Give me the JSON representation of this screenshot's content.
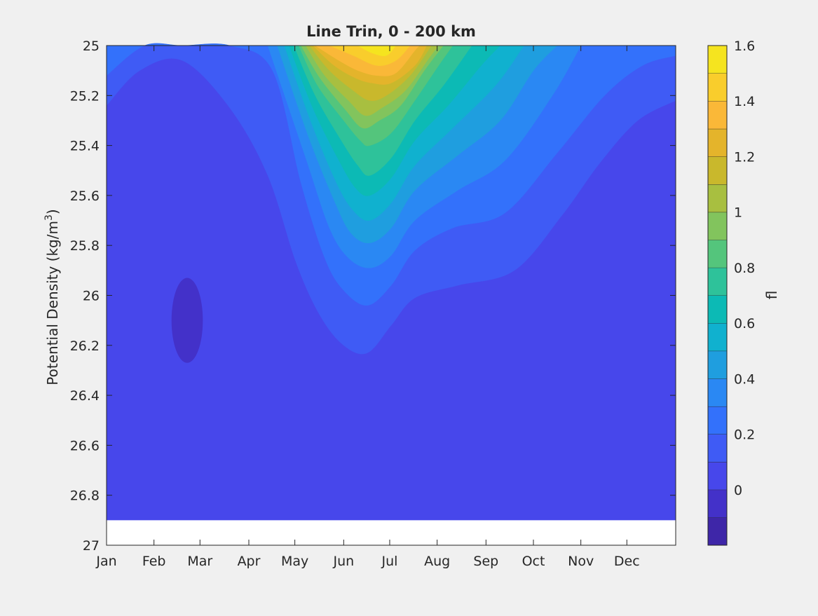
{
  "chart_data": {
    "type": "heatmap",
    "subtype": "filled-contour",
    "title": "Line Trin, 0 - 200 km",
    "ylabel_main": "Potential Density (kg/m",
    "ylabel_sup": "3",
    "ylabel_end": ")",
    "xlabel": "",
    "x_ticks": [
      "Jan",
      "Feb",
      "Mar",
      "Apr",
      "May",
      "Jun",
      "Jul",
      "Aug",
      "Sep",
      "Oct",
      "Nov",
      "Dec"
    ],
    "x_tick_positions": [
      0,
      1,
      1.97,
      3,
      3.97,
      5,
      5.97,
      6.97,
      8,
      9,
      10,
      10.97
    ],
    "xlim": [
      0,
      12
    ],
    "y_ticks": [
      "25",
      "25.2",
      "25.4",
      "25.6",
      "25.8",
      "26",
      "26.2",
      "26.4",
      "26.6",
      "26.8",
      "27"
    ],
    "y_tick_values": [
      25,
      25.2,
      25.4,
      25.6,
      25.8,
      26,
      26.2,
      26.4,
      26.6,
      26.8,
      27
    ],
    "ylim": [
      25,
      27
    ],
    "y_reversed": true,
    "data_max_density": 26.9,
    "colorbar": {
      "label": "fl",
      "ticks": [
        "1.6",
        "1.4",
        "1.2",
        "1",
        "0.8",
        "0.6",
        "0.4",
        "0.2",
        "0"
      ],
      "tick_values": [
        1.6,
        1.4,
        1.2,
        1.0,
        0.8,
        0.6,
        0.4,
        0.2,
        0.0
      ],
      "range": [
        -0.2,
        1.6
      ],
      "levels": [
        -0.2,
        -0.1,
        0,
        0.1,
        0.2,
        0.3,
        0.4,
        0.5,
        0.6,
        0.7,
        0.8,
        0.9,
        1.0,
        1.1,
        1.2,
        1.3,
        1.4,
        1.5,
        1.6
      ],
      "colors": [
        "#3e26a8",
        "#4331c9",
        "#4747eb",
        "#3f5bf5",
        "#3371fb",
        "#2a88f3",
        "#1f9edf",
        "#10b1cf",
        "#0cbab5",
        "#2ec29a",
        "#54c57c",
        "#82c45d",
        "#a8bf40",
        "#c9b82c",
        "#e4b42b",
        "#fab838",
        "#f9cd2c",
        "#f5e41f"
      ]
    },
    "contour_bands": [
      {
        "level": 0.1,
        "color": "#3f5bf5",
        "boundary": [
          [
            0,
            25.24
          ],
          [
            0.7,
            25.1
          ],
          [
            1.6,
            25.06
          ],
          [
            2.6,
            25.25
          ],
          [
            3.4,
            25.52
          ],
          [
            4.0,
            25.87
          ],
          [
            4.5,
            26.08
          ],
          [
            5.0,
            26.2
          ],
          [
            5.5,
            26.23
          ],
          [
            6.0,
            26.12
          ],
          [
            6.5,
            26.01
          ],
          [
            7.4,
            25.96
          ],
          [
            8.6,
            25.9
          ],
          [
            9.6,
            25.68
          ],
          [
            10.4,
            25.47
          ],
          [
            11.2,
            25.3
          ],
          [
            12,
            25.22
          ]
        ]
      },
      {
        "level": 0.2,
        "color": "#3371fb",
        "boundary": [
          [
            0,
            25.12
          ],
          [
            0.8,
            25.0
          ],
          [
            1.6,
            25.0
          ],
          [
            2.6,
            25.0
          ],
          [
            3.5,
            25.1
          ],
          [
            4.1,
            25.55
          ],
          [
            4.6,
            25.85
          ],
          [
            5.0,
            25.98
          ],
          [
            5.5,
            26.04
          ],
          [
            6.0,
            25.96
          ],
          [
            6.5,
            25.82
          ],
          [
            7.3,
            25.73
          ],
          [
            8.4,
            25.67
          ],
          [
            9.5,
            25.43
          ],
          [
            10.5,
            25.2
          ],
          [
            11.3,
            25.08
          ],
          [
            12,
            25.04
          ]
        ]
      },
      {
        "level": 0.3,
        "color": "#2a88f3",
        "boundary": [
          [
            3.4,
            25.0
          ],
          [
            4.2,
            25.45
          ],
          [
            4.7,
            25.73
          ],
          [
            5.1,
            25.85
          ],
          [
            5.55,
            25.89
          ],
          [
            6.0,
            25.84
          ],
          [
            6.5,
            25.7
          ],
          [
            7.4,
            25.58
          ],
          [
            8.4,
            25.46
          ],
          [
            9.4,
            25.2
          ],
          [
            10.0,
            25.0
          ]
        ]
      },
      {
        "level": 0.4,
        "color": "#1f9edf",
        "boundary": [
          [
            3.6,
            25.0
          ],
          [
            4.25,
            25.36
          ],
          [
            4.8,
            25.62
          ],
          [
            5.15,
            25.75
          ],
          [
            5.55,
            25.79
          ],
          [
            6.0,
            25.73
          ],
          [
            6.5,
            25.58
          ],
          [
            7.4,
            25.44
          ],
          [
            8.3,
            25.3
          ],
          [
            9.0,
            25.1
          ],
          [
            9.5,
            25.0
          ]
        ]
      },
      {
        "level": 0.5,
        "color": "#10b1cf",
        "boundary": [
          [
            3.75,
            25.0
          ],
          [
            4.3,
            25.3
          ],
          [
            4.85,
            25.55
          ],
          [
            5.2,
            25.66
          ],
          [
            5.55,
            25.7
          ],
          [
            6.0,
            25.63
          ],
          [
            6.5,
            25.48
          ],
          [
            7.3,
            25.33
          ],
          [
            8.2,
            25.16
          ],
          [
            8.8,
            25.0
          ]
        ]
      },
      {
        "level": 0.6,
        "color": "#0cbab5",
        "boundary": [
          [
            3.85,
            25.0
          ],
          [
            4.35,
            25.25
          ],
          [
            4.9,
            25.46
          ],
          [
            5.25,
            25.57
          ],
          [
            5.55,
            25.6
          ],
          [
            6.0,
            25.53
          ],
          [
            6.5,
            25.38
          ],
          [
            7.2,
            25.24
          ],
          [
            7.9,
            25.08
          ],
          [
            8.3,
            25.0
          ]
        ]
      },
      {
        "level": 0.7,
        "color": "#2ec29a",
        "boundary": [
          [
            3.95,
            25.0
          ],
          [
            4.4,
            25.2
          ],
          [
            4.95,
            25.38
          ],
          [
            5.3,
            25.48
          ],
          [
            5.55,
            25.52
          ],
          [
            6.0,
            25.45
          ],
          [
            6.5,
            25.3
          ],
          [
            7.1,
            25.16
          ],
          [
            7.7,
            25.0
          ]
        ]
      },
      {
        "level": 0.8,
        "color": "#54c57c",
        "boundary": [
          [
            4.05,
            25.0
          ],
          [
            4.45,
            25.16
          ],
          [
            5.0,
            25.3
          ],
          [
            5.35,
            25.38
          ],
          [
            5.55,
            25.4
          ],
          [
            6.0,
            25.35
          ],
          [
            6.5,
            25.22
          ],
          [
            7.0,
            25.08
          ],
          [
            7.3,
            25.0
          ]
        ]
      },
      {
        "level": 0.9,
        "color": "#82c45d",
        "boundary": [
          [
            4.1,
            25.0
          ],
          [
            4.5,
            25.13
          ],
          [
            5.05,
            25.26
          ],
          [
            5.4,
            25.33
          ],
          [
            5.75,
            25.3
          ],
          [
            6.2,
            25.24
          ],
          [
            6.7,
            25.1
          ],
          [
            7.1,
            25.0
          ]
        ]
      },
      {
        "level": 1.0,
        "color": "#a8bf40",
        "boundary": [
          [
            4.2,
            25.0
          ],
          [
            4.6,
            25.12
          ],
          [
            5.1,
            25.22
          ],
          [
            5.45,
            25.28
          ],
          [
            5.8,
            25.25
          ],
          [
            6.3,
            25.18
          ],
          [
            6.8,
            25.05
          ],
          [
            7.0,
            25.0
          ]
        ]
      },
      {
        "level": 1.1,
        "color": "#c9b82c",
        "boundary": [
          [
            4.28,
            25.0
          ],
          [
            4.7,
            25.1
          ],
          [
            5.2,
            25.18
          ],
          [
            5.55,
            25.22
          ],
          [
            5.9,
            25.2
          ],
          [
            6.4,
            25.12
          ],
          [
            6.85,
            25.0
          ]
        ]
      },
      {
        "level": 1.2,
        "color": "#e4b42b",
        "boundary": [
          [
            4.35,
            25.0
          ],
          [
            4.8,
            25.08
          ],
          [
            5.25,
            25.13
          ],
          [
            5.6,
            25.15
          ],
          [
            6.0,
            25.15
          ],
          [
            6.5,
            25.08
          ],
          [
            6.75,
            25.0
          ]
        ]
      },
      {
        "level": 1.3,
        "color": "#fab838",
        "boundary": [
          [
            4.4,
            25.0
          ],
          [
            4.9,
            25.06
          ],
          [
            5.3,
            25.1
          ],
          [
            5.7,
            25.12
          ],
          [
            6.1,
            25.11
          ],
          [
            6.5,
            25.02
          ],
          [
            6.6,
            25.0
          ]
        ]
      },
      {
        "level": 1.4,
        "color": "#f9cd2c",
        "boundary": [
          [
            4.7,
            25.0
          ],
          [
            5.2,
            25.04
          ],
          [
            5.7,
            25.08
          ],
          [
            6.1,
            25.06
          ],
          [
            6.4,
            25.0
          ]
        ]
      },
      {
        "level": 1.5,
        "color": "#f5e41f",
        "boundary": [
          [
            5.3,
            25.0
          ],
          [
            5.6,
            25.03
          ],
          [
            5.9,
            25.04
          ],
          [
            6.1,
            25.0
          ]
        ]
      }
    ],
    "low_pocket": {
      "level": -0.1,
      "color": "#4331c9",
      "center": [
        1.7,
        26.1
      ],
      "radius_x": 0.33,
      "radius_y": 0.17
    },
    "background_color": "#4747eb"
  }
}
